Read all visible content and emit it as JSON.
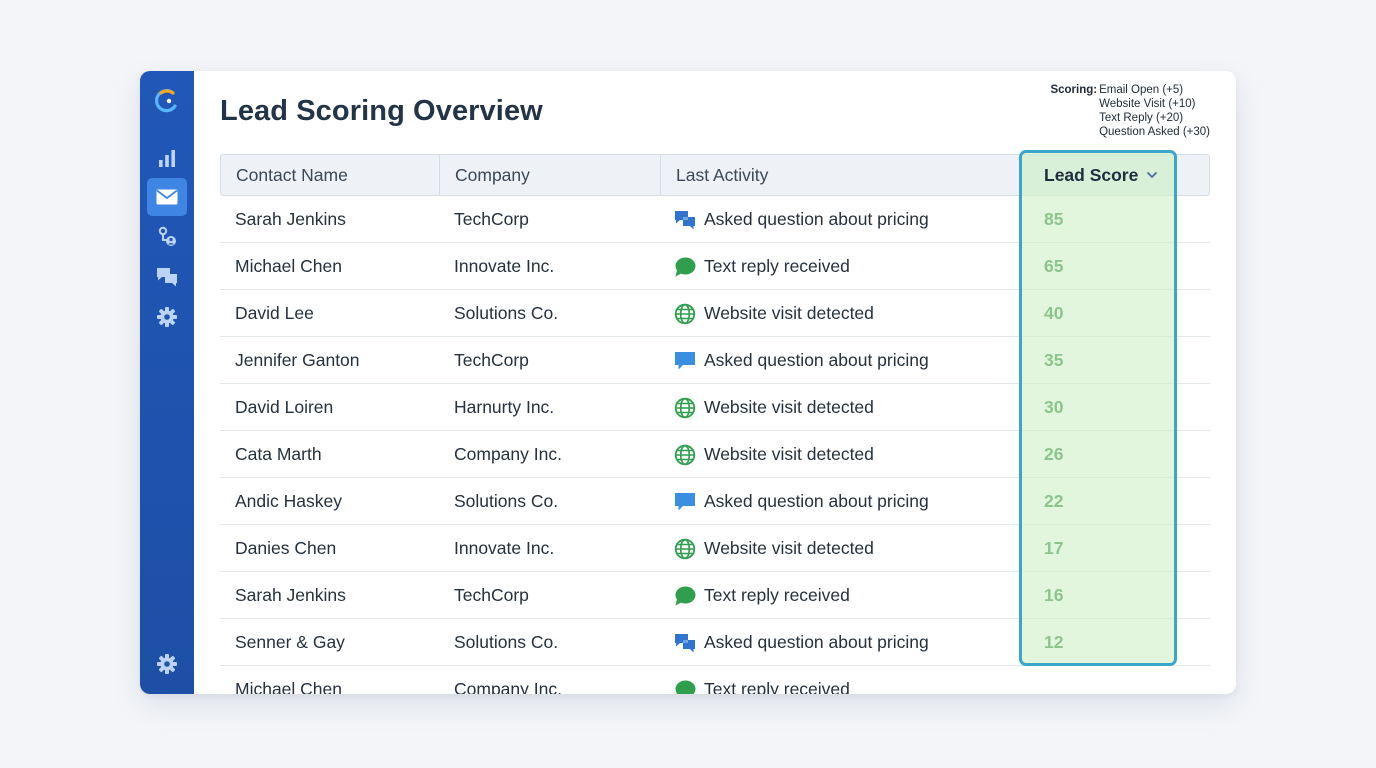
{
  "page": {
    "title": "Lead Scoring Overview"
  },
  "scoring_legend": {
    "label": "Scoring:",
    "items": [
      "Email Open (+5)",
      "Website Visit (+10)",
      "Text Reply (+20)",
      "Question Asked (+30)"
    ]
  },
  "sidebar": {
    "logo": "logo-icon",
    "items": [
      {
        "icon": "bar-chart-icon",
        "active": false
      },
      {
        "icon": "envelope-icon",
        "active": true
      },
      {
        "icon": "contacts-icon",
        "active": false
      },
      {
        "icon": "chat-bubbles-icon",
        "active": false
      },
      {
        "icon": "gear-icon",
        "active": false
      }
    ],
    "bottom_item": {
      "icon": "gear-icon"
    }
  },
  "table": {
    "headers": {
      "contact": "Contact Name",
      "company": "Company",
      "activity": "Last Activity",
      "score": "Lead Score"
    },
    "sort_icon": "chevron-down-icon",
    "rows": [
      {
        "contact": "Sarah Jenkins",
        "company": "TechCorp",
        "activity_icon": "chat-bubbles-icon",
        "activity": "Asked question about pricing",
        "score": "85"
      },
      {
        "contact": "Michael Chen",
        "company": "Innovate Inc.",
        "activity_icon": "text-bubble-icon",
        "activity": "Text reply received",
        "score": "65"
      },
      {
        "contact": "David Lee",
        "company": "Solutions Co.",
        "activity_icon": "globe-icon",
        "activity": "Website visit detected",
        "score": "40"
      },
      {
        "contact": "Jennifer Ganton",
        "company": "TechCorp",
        "activity_icon": "chat-bubble-icon",
        "activity": "Asked question about pricing",
        "score": "35"
      },
      {
        "contact": "David Loiren",
        "company": "Harnurty Inc.",
        "activity_icon": "globe-icon",
        "activity": "Website visit detected",
        "score": "30"
      },
      {
        "contact": "Cata Marth",
        "company": "Company Inc.",
        "activity_icon": "globe-icon",
        "activity": "Website visit detected",
        "score": "26"
      },
      {
        "contact": "Andic Haskey",
        "company": "Solutions Co.",
        "activity_icon": "chat-bubble-icon",
        "activity": "Asked question about pricing",
        "score": "22"
      },
      {
        "contact": "Danies Chen",
        "company": "Innovate Inc.",
        "activity_icon": "globe-icon",
        "activity": "Website visit detected",
        "score": "17"
      },
      {
        "contact": "Sarah Jenkins",
        "company": "TechCorp",
        "activity_icon": "text-bubble-icon",
        "activity": "Text reply received",
        "score": "16"
      },
      {
        "contact": "Senner & Gay",
        "company": "Solutions Co.",
        "activity_icon": "chat-bubbles-icon",
        "activity": "Asked question about pricing",
        "score": "12"
      },
      {
        "contact": "Michael Chen",
        "company": "Company Inc.",
        "activity_icon": "text-bubble-icon",
        "activity": "Text reply received",
        "score": ""
      }
    ]
  },
  "colors": {
    "sidebar": "#1f53ad",
    "sidebar_active": "#3f86e4",
    "score_text": "#2f7f35",
    "score_highlight_border": "#3aa7c9",
    "score_highlight_fill": "#d8f3d2"
  }
}
